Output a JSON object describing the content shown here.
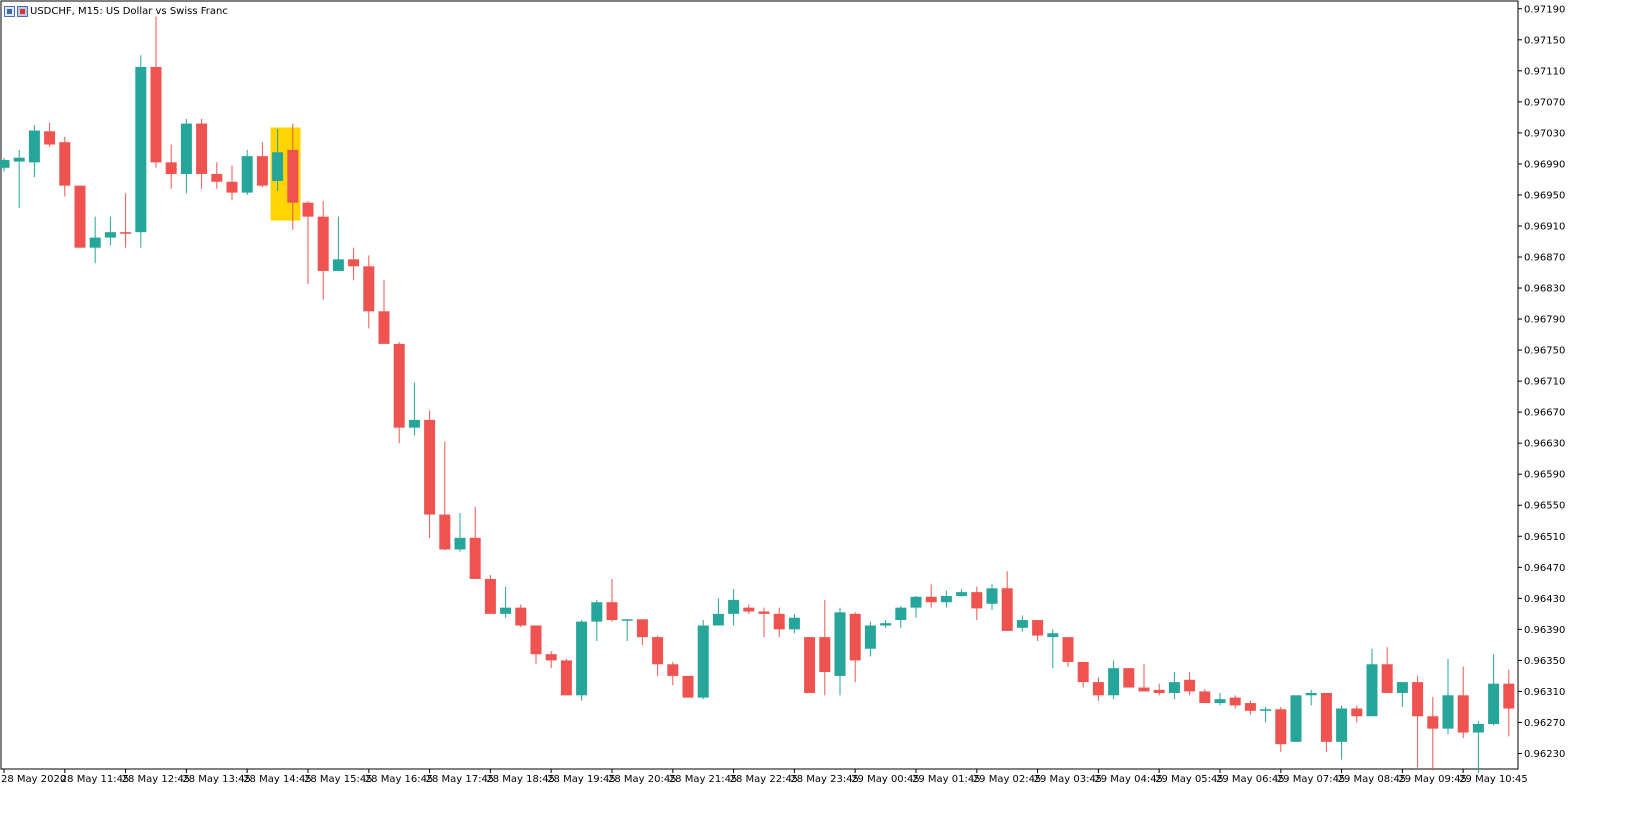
{
  "window": {
    "symbol_title": "USDCHF, M15:  US Dollar vs Swiss Franc"
  },
  "colors": {
    "bull": "#26a69a",
    "bear": "#ef5350",
    "highlight": "#ffd400",
    "axis": "#000000"
  },
  "icons": [
    "chart-window-icon",
    "chart-type-icon"
  ],
  "chart_data": {
    "type": "candlestick",
    "title": "USDCHF, M15:  US Dollar vs Swiss Franc",
    "ylim": [
      0.9621,
      0.972
    ],
    "y_ticks": [
      "0.97190",
      "0.97150",
      "0.97110",
      "0.97070",
      "0.97030",
      "0.96990",
      "0.96950",
      "0.96910",
      "0.96870",
      "0.96830",
      "0.96790",
      "0.96750",
      "0.96710",
      "0.96670",
      "0.96630",
      "0.96590",
      "0.96550",
      "0.96510",
      "0.96470",
      "0.96430",
      "0.96390",
      "0.96350",
      "0.96310",
      "0.96270",
      "0.96230"
    ],
    "x_labels": [
      "28 May 2020",
      "28 May 11:45",
      "28 May 12:45",
      "28 May 13:45",
      "28 May 14:45",
      "28 May 15:45",
      "28 May 16:45",
      "28 May 17:45",
      "28 May 18:45",
      "28 May 19:45",
      "28 May 20:45",
      "28 May 21:45",
      "28 May 22:45",
      "28 May 23:45",
      "29 May 00:45",
      "29 May 01:45",
      "29 May 02:45",
      "29 May 03:45",
      "29 May 04:45",
      "29 May 05:45",
      "29 May 06:45",
      "29 May 07:45",
      "29 May 08:45",
      "29 May 09:45",
      "29 May 10:45"
    ],
    "x_label_every": 4,
    "highlight_candle_index": 18,
    "grid": false,
    "candles": [
      [
        0.96985,
        0.96998,
        0.9698,
        0.96995
      ],
      [
        0.96993,
        0.97008,
        0.96933,
        0.96998
      ],
      [
        0.96992,
        0.9704,
        0.96973,
        0.97033
      ],
      [
        0.97032,
        0.97043,
        0.97012,
        0.97015
      ],
      [
        0.97018,
        0.97025,
        0.96948,
        0.96962
      ],
      [
        0.96962,
        0.96962,
        0.96882,
        0.96882
      ],
      [
        0.96882,
        0.96922,
        0.96862,
        0.96895
      ],
      [
        0.96895,
        0.96922,
        0.96885,
        0.96902
      ],
      [
        0.96902,
        0.96952,
        0.96882,
        0.969
      ],
      [
        0.96902,
        0.9713,
        0.96882,
        0.97115
      ],
      [
        0.97115,
        0.9718,
        0.96985,
        0.96992
      ],
      [
        0.96992,
        0.97015,
        0.96958,
        0.96977
      ],
      [
        0.96977,
        0.97048,
        0.96952,
        0.97042
      ],
      [
        0.97042,
        0.97048,
        0.96958,
        0.96977
      ],
      [
        0.96977,
        0.96992,
        0.96958,
        0.96967
      ],
      [
        0.96967,
        0.96988,
        0.96943,
        0.96953
      ],
      [
        0.96953,
        0.97008,
        0.9695,
        0.97
      ],
      [
        0.97,
        0.97018,
        0.9696,
        0.96962
      ],
      [
        0.96968,
        0.97035,
        0.96955,
        0.97005
      ],
      [
        0.97008,
        0.97042,
        0.96905,
        0.9694
      ],
      [
        0.9694,
        0.96942,
        0.96835,
        0.96922
      ],
      [
        0.96922,
        0.96942,
        0.96815,
        0.96852
      ],
      [
        0.96852,
        0.96922,
        0.96852,
        0.96867
      ],
      [
        0.96867,
        0.96882,
        0.9684,
        0.96858
      ],
      [
        0.96858,
        0.96872,
        0.96778,
        0.968
      ],
      [
        0.968,
        0.9684,
        0.9676,
        0.96758
      ],
      [
        0.96758,
        0.9676,
        0.9663,
        0.9665
      ],
      [
        0.9665,
        0.96708,
        0.9664,
        0.9666
      ],
      [
        0.9666,
        0.96672,
        0.96508,
        0.96538
      ],
      [
        0.96538,
        0.96632,
        0.96492,
        0.96493
      ],
      [
        0.96493,
        0.9654,
        0.9649,
        0.96508
      ],
      [
        0.96508,
        0.96548,
        0.96455,
        0.96455
      ],
      [
        0.96455,
        0.9646,
        0.9641,
        0.9641
      ],
      [
        0.9641,
        0.96445,
        0.96405,
        0.96418
      ],
      [
        0.96418,
        0.96422,
        0.96393,
        0.96395
      ],
      [
        0.96395,
        0.96395,
        0.96345,
        0.96358
      ],
      [
        0.96358,
        0.96362,
        0.9634,
        0.9635
      ],
      [
        0.9635,
        0.96352,
        0.96305,
        0.96305
      ],
      [
        0.96305,
        0.96402,
        0.96298,
        0.964
      ],
      [
        0.964,
        0.96428,
        0.96375,
        0.96425
      ],
      [
        0.96425,
        0.96455,
        0.964,
        0.96402
      ],
      [
        0.96402,
        0.96403,
        0.96375,
        0.96403
      ],
      [
        0.96403,
        0.96403,
        0.9637,
        0.9638
      ],
      [
        0.9638,
        0.96382,
        0.9633,
        0.96345
      ],
      [
        0.96345,
        0.96348,
        0.96318,
        0.9633
      ],
      [
        0.9633,
        0.9633,
        0.96302,
        0.96302
      ],
      [
        0.96302,
        0.96402,
        0.963,
        0.96395
      ],
      [
        0.96395,
        0.9643,
        0.96395,
        0.9641
      ],
      [
        0.9641,
        0.96442,
        0.96395,
        0.96428
      ],
      [
        0.96418,
        0.96422,
        0.9641,
        0.96413
      ],
      [
        0.96413,
        0.96418,
        0.9638,
        0.9641
      ],
      [
        0.9641,
        0.96418,
        0.9638,
        0.9639
      ],
      [
        0.9639,
        0.9641,
        0.96385,
        0.96405
      ],
      [
        0.9638,
        0.9638,
        0.96308,
        0.96308
      ],
      [
        0.9638,
        0.96428,
        0.96305,
        0.96335
      ],
      [
        0.9633,
        0.96418,
        0.96305,
        0.96412
      ],
      [
        0.9641,
        0.96412,
        0.96322,
        0.9635
      ],
      [
        0.96365,
        0.964,
        0.96355,
        0.96395
      ],
      [
        0.96395,
        0.96402,
        0.96392,
        0.96398
      ],
      [
        0.96402,
        0.9642,
        0.96392,
        0.96418
      ],
      [
        0.96418,
        0.96433,
        0.96405,
        0.96432
      ],
      [
        0.96432,
        0.96448,
        0.96418,
        0.96425
      ],
      [
        0.96425,
        0.9644,
        0.96418,
        0.96433
      ],
      [
        0.96433,
        0.96442,
        0.96432,
        0.96438
      ],
      [
        0.96438,
        0.96445,
        0.96402,
        0.96417
      ],
      [
        0.96423,
        0.96448,
        0.96415,
        0.96443
      ],
      [
        0.96443,
        0.96465,
        0.96388,
        0.96388
      ],
      [
        0.96392,
        0.96408,
        0.96387,
        0.96402
      ],
      [
        0.96402,
        0.96402,
        0.96375,
        0.96382
      ],
      [
        0.9638,
        0.9639,
        0.9634,
        0.96385
      ],
      [
        0.9638,
        0.9638,
        0.96342,
        0.96348
      ],
      [
        0.96348,
        0.96348,
        0.96315,
        0.96322
      ],
      [
        0.96322,
        0.96328,
        0.96298,
        0.96305
      ],
      [
        0.96305,
        0.9635,
        0.963,
        0.9634
      ],
      [
        0.9634,
        0.9634,
        0.96315,
        0.96315
      ],
      [
        0.96315,
        0.96345,
        0.96312,
        0.9631
      ],
      [
        0.96312,
        0.9632,
        0.96305,
        0.96308
      ],
      [
        0.96308,
        0.96335,
        0.963,
        0.96322
      ],
      [
        0.96325,
        0.96335,
        0.96305,
        0.9631
      ],
      [
        0.9631,
        0.96313,
        0.96295,
        0.96295
      ],
      [
        0.96295,
        0.96308,
        0.96292,
        0.963
      ],
      [
        0.96302,
        0.96305,
        0.96288,
        0.96292
      ],
      [
        0.96295,
        0.96298,
        0.9628,
        0.96285
      ],
      [
        0.96285,
        0.9629,
        0.9627,
        0.96287
      ],
      [
        0.96287,
        0.9629,
        0.96232,
        0.96242
      ],
      [
        0.96245,
        0.96305,
        0.96245,
        0.96305
      ],
      [
        0.96305,
        0.96312,
        0.96292,
        0.96308
      ],
      [
        0.96308,
        0.96308,
        0.96232,
        0.96245
      ],
      [
        0.96245,
        0.96292,
        0.96222,
        0.96288
      ],
      [
        0.96288,
        0.96292,
        0.9627,
        0.96278
      ],
      [
        0.96278,
        0.96365,
        0.96278,
        0.96345
      ],
      [
        0.96345,
        0.96367,
        0.96308,
        0.96308
      ],
      [
        0.96308,
        0.96322,
        0.9629,
        0.96322
      ],
      [
        0.96322,
        0.9633,
        0.96212,
        0.96278
      ],
      [
        0.96278,
        0.96303,
        0.96208,
        0.96262
      ],
      [
        0.96262,
        0.96352,
        0.96255,
        0.96305
      ],
      [
        0.96305,
        0.96342,
        0.9625,
        0.96257
      ],
      [
        0.96257,
        0.96272,
        0.96205,
        0.96268
      ],
      [
        0.96268,
        0.96358,
        0.96266,
        0.9632
      ],
      [
        0.9632,
        0.96338,
        0.96252,
        0.96288
      ]
    ]
  }
}
